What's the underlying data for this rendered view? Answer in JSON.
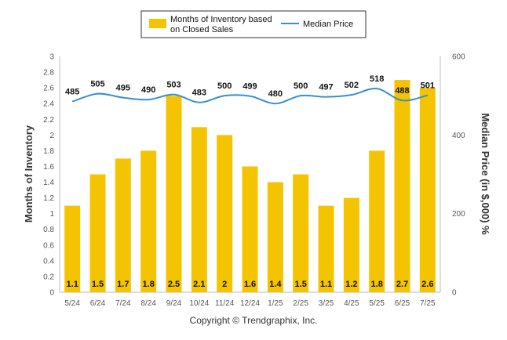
{
  "chart_data": {
    "type": "bar+line",
    "categories": [
      "5/24",
      "6/24",
      "7/24",
      "8/24",
      "9/24",
      "10/24",
      "11/24",
      "12/24",
      "1/25",
      "2/25",
      "3/25",
      "4/25",
      "5/25",
      "6/25",
      "7/25"
    ],
    "series": [
      {
        "name": "Months of Inventory based on Closed Sales",
        "type": "bar",
        "axis": "left",
        "color": "#f5c400",
        "values": [
          1.1,
          1.5,
          1.7,
          1.8,
          2.5,
          2.1,
          2,
          1.6,
          1.4,
          1.5,
          1.1,
          1.2,
          1.8,
          2.7,
          2.6
        ],
        "labels": [
          "1.1",
          "1.5",
          "1.7",
          "1.8",
          "2.5",
          "2.1",
          "2",
          "1.6",
          "1.4",
          "1.5",
          "1.1",
          "1.2",
          "1.8",
          "2.7",
          "2.6"
        ]
      },
      {
        "name": "Median Price",
        "type": "line",
        "axis": "right",
        "color": "#3a8fd0",
        "values": [
          485,
          505,
          495,
          490,
          503,
          483,
          500,
          499,
          480,
          500,
          497,
          502,
          518,
          488,
          501
        ]
      }
    ],
    "legend": {
      "bar_label_line1": "Months of Inventory based",
      "bar_label_line2": "on Closed Sales",
      "line_label": "Median Price",
      "position": "top-center"
    },
    "y_left": {
      "label": "Months of Inventory",
      "range": [
        0,
        3
      ],
      "ticks": [
        "0",
        "0.2",
        "0.4",
        "0.6",
        "0.8",
        "1",
        "1.2",
        "1.4",
        "1.6",
        "1.8",
        "2",
        "2.2",
        "2.4",
        "2.6",
        "2.8",
        "3"
      ]
    },
    "y_right": {
      "label": "Median Price (in $,000) %",
      "range": [
        0,
        600
      ],
      "ticks": [
        "0",
        "200",
        "400",
        "600"
      ]
    },
    "grid": false
  },
  "footer": {
    "copyright": "Copyright © Trendgraphix, Inc."
  }
}
